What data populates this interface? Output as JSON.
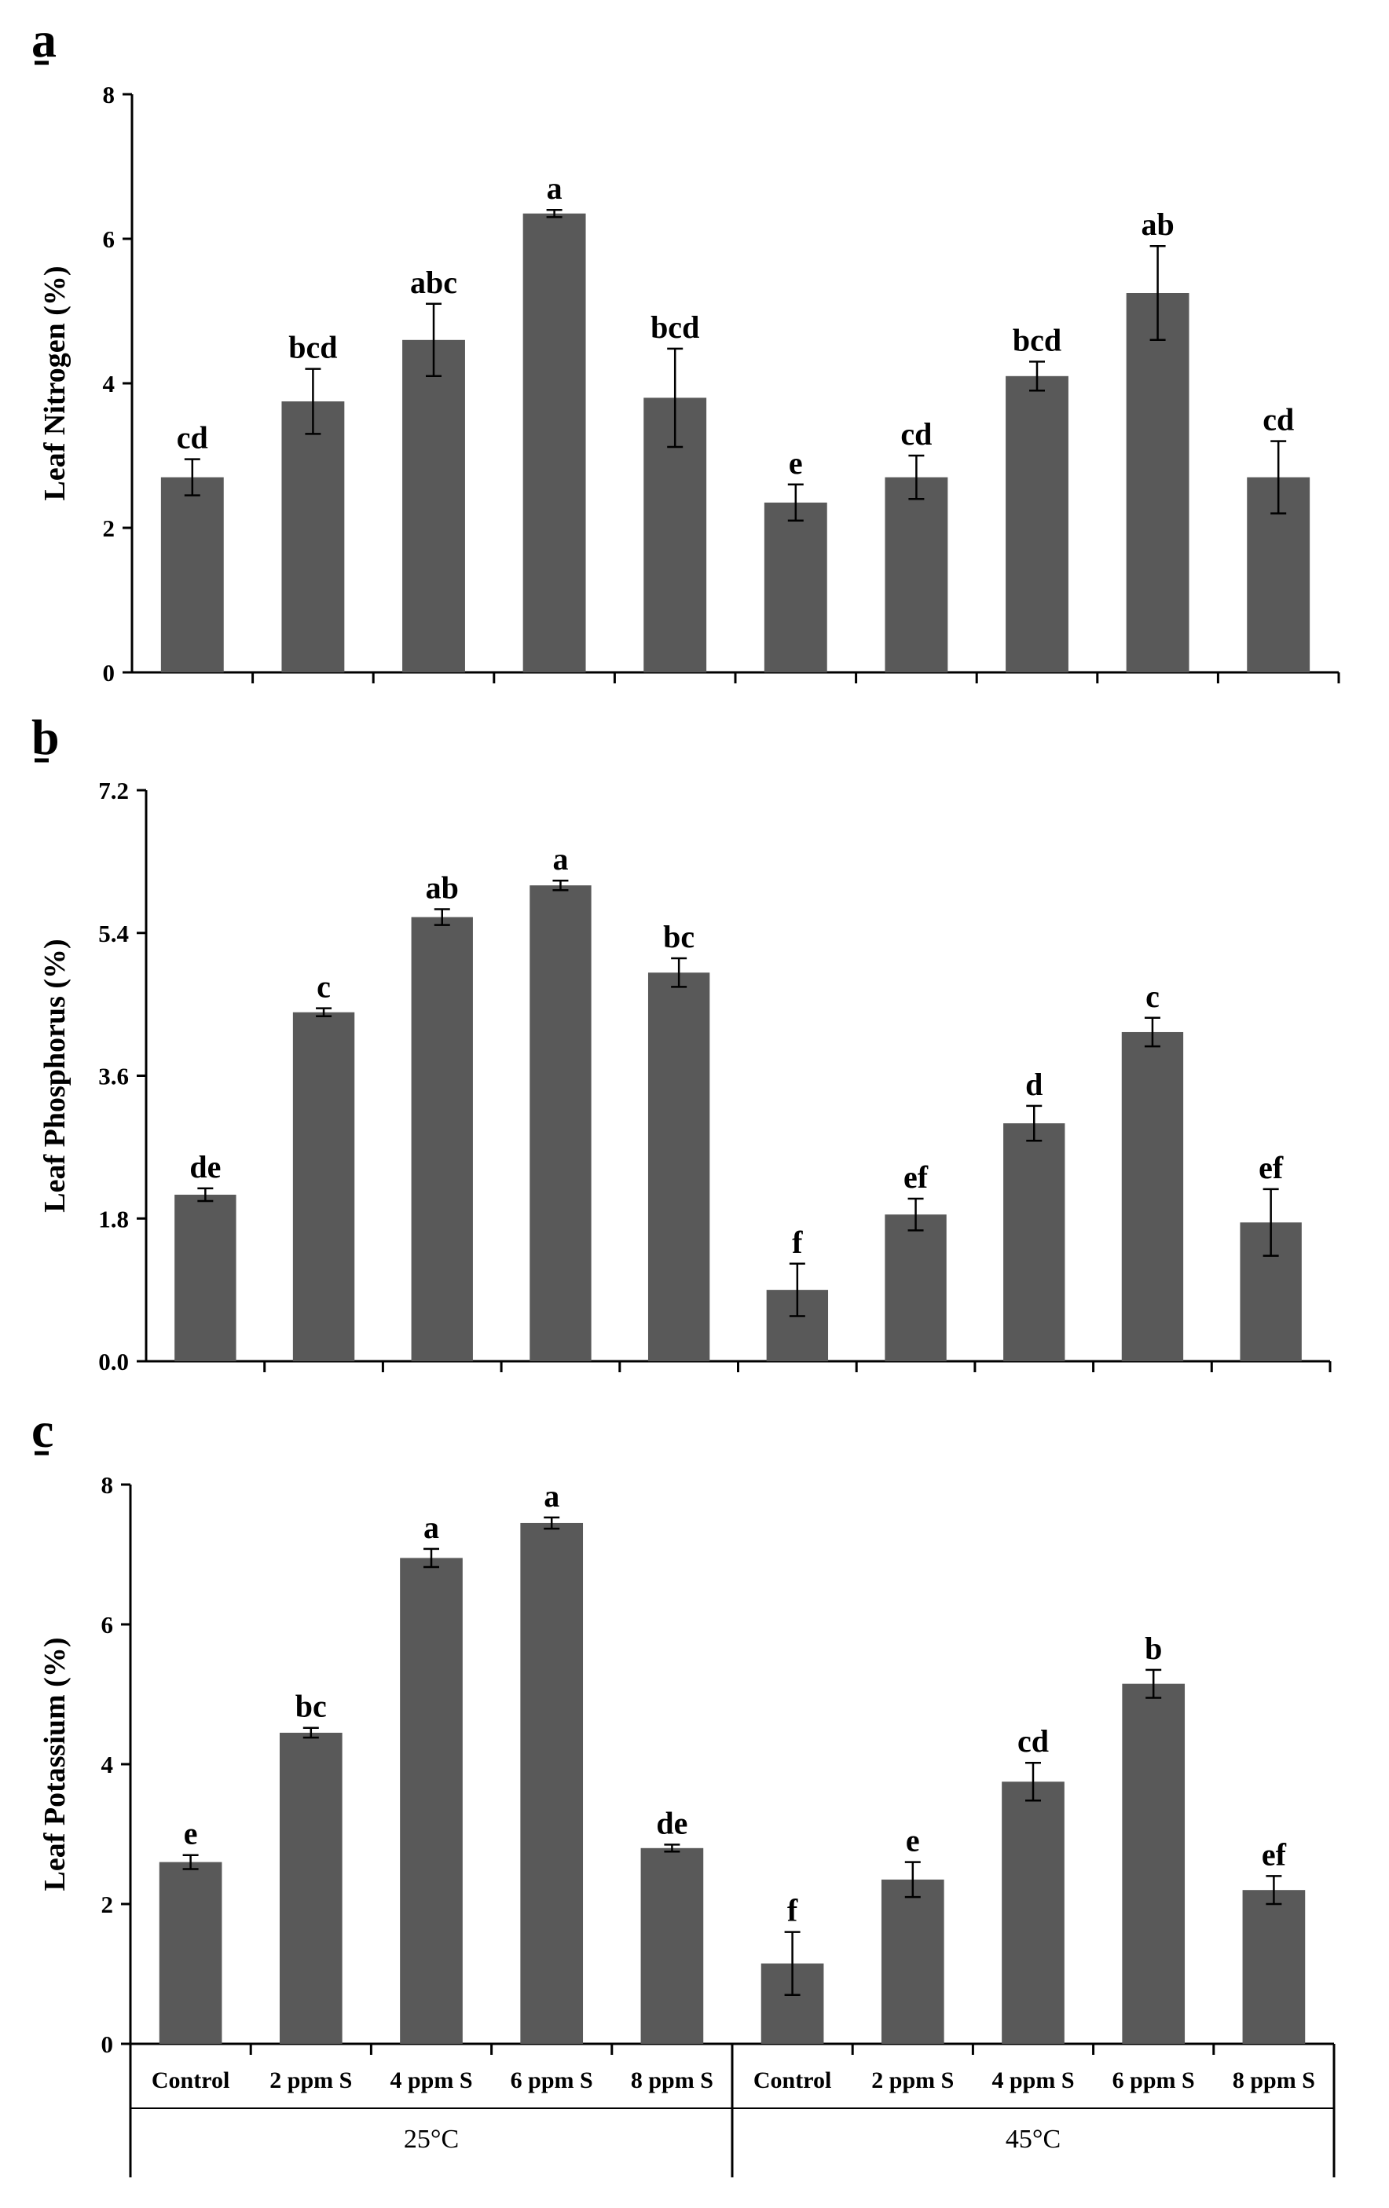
{
  "bar_color": "#595959",
  "axis_color": "#000000",
  "chart_data": [
    {
      "type": "bar",
      "panel": "a",
      "ylabel": "Leaf Nitrogen (%)",
      "ylim": [
        0,
        8
      ],
      "yticks": [
        "0",
        "2",
        "4",
        "6",
        "8"
      ],
      "yticks_values": [
        0,
        2,
        4,
        6,
        8
      ],
      "categories": [
        "Control",
        "2 ppm S",
        "4 ppm S",
        "6 ppm S",
        "8 ppm S",
        "Control",
        "2 ppm S",
        "4 ppm S",
        "6 ppm S",
        "8 ppm S"
      ],
      "groups": [
        "25°C",
        "45°C"
      ],
      "values": [
        2.7,
        3.75,
        4.6,
        6.35,
        3.8,
        2.35,
        2.7,
        4.1,
        5.25,
        2.7
      ],
      "errors": [
        0.25,
        0.45,
        0.5,
        0.05,
        0.68,
        0.25,
        0.3,
        0.2,
        0.65,
        0.5
      ],
      "letters": [
        "cd",
        "bcd",
        "abc",
        "a",
        "bcd",
        "e",
        "cd",
        "bcd",
        "ab",
        "cd"
      ]
    },
    {
      "type": "bar",
      "panel": "b",
      "ylabel": "Leaf Phosphorus (%)",
      "ylim": [
        0,
        7.2
      ],
      "yticks": [
        "0.0",
        "1.8",
        "3.6",
        "5.4",
        "7.2"
      ],
      "yticks_values": [
        0,
        1.8,
        3.6,
        5.4,
        7.2
      ],
      "categories": [
        "Control",
        "2 ppm S",
        "4 ppm S",
        "6 ppm S",
        "8 ppm S",
        "Control",
        "2 ppm S",
        "4 ppm S",
        "6 ppm S",
        "8 ppm S"
      ],
      "groups": [
        "25°C",
        "45°C"
      ],
      "values": [
        2.1,
        4.4,
        5.6,
        6.0,
        4.9,
        0.9,
        1.85,
        3.0,
        4.15,
        1.75
      ],
      "errors": [
        0.08,
        0.05,
        0.1,
        0.06,
        0.18,
        0.33,
        0.2,
        0.22,
        0.18,
        0.42
      ],
      "letters": [
        "de",
        "c",
        "ab",
        "a",
        "bc",
        "f",
        "ef",
        "d",
        "c",
        "ef"
      ]
    },
    {
      "type": "bar",
      "panel": "c",
      "ylabel": "Leaf Potassium (%)",
      "ylim": [
        0,
        8
      ],
      "yticks": [
        "0",
        "2",
        "4",
        "6",
        "8"
      ],
      "yticks_values": [
        0,
        2,
        4,
        6,
        8
      ],
      "categories": [
        "Control",
        "2 ppm S",
        "4 ppm S",
        "6 ppm S",
        "8 ppm S",
        "Control",
        "2 ppm S",
        "4 ppm S",
        "6 ppm S",
        "8 ppm S"
      ],
      "groups": [
        "25°C",
        "45°C"
      ],
      "values": [
        2.6,
        4.45,
        6.95,
        7.45,
        2.8,
        1.15,
        2.35,
        3.75,
        5.15,
        2.2
      ],
      "errors": [
        0.1,
        0.07,
        0.13,
        0.08,
        0.05,
        0.45,
        0.25,
        0.27,
        0.2,
        0.2
      ],
      "letters": [
        "e",
        "bc",
        "a",
        "a",
        "de",
        "f",
        "e",
        "cd",
        "b",
        "ef"
      ]
    }
  ]
}
